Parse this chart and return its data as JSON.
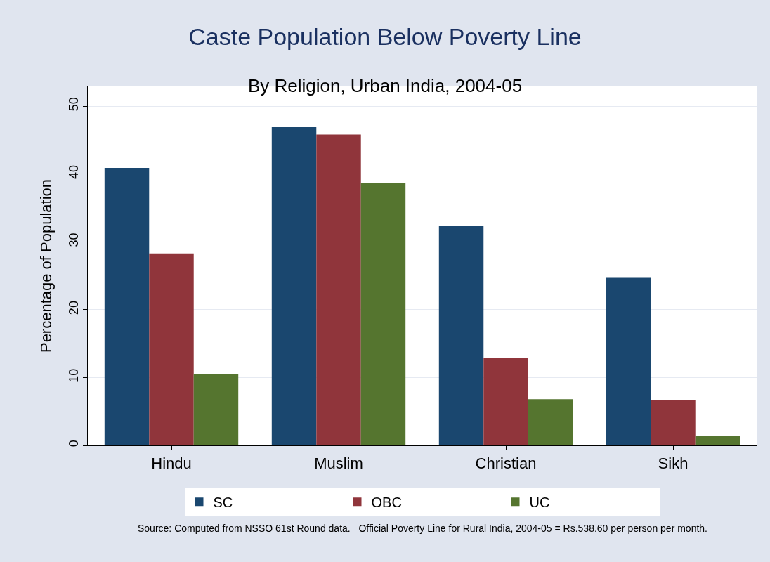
{
  "chart_data": {
    "type": "bar",
    "title": "Caste Population Below Poverty Line",
    "subtitle": "By Religion, Urban India, 2004-05",
    "ylabel": "Percentage of Population",
    "categories": [
      "Hindu",
      "Muslim",
      "Christian",
      "Sikh"
    ],
    "series": [
      {
        "name": "SC",
        "color": "#1a476f",
        "values": [
          40.9,
          46.9,
          32.3,
          24.7
        ]
      },
      {
        "name": "OBC",
        "color": "#90353b",
        "values": [
          28.3,
          45.8,
          12.9,
          6.7
        ]
      },
      {
        "name": "UC",
        "color": "#55752f",
        "values": [
          10.5,
          38.7,
          6.8,
          1.4
        ]
      }
    ],
    "ylim": [
      0,
      52.9
    ],
    "yticks": [
      0,
      10,
      20,
      30,
      40,
      50
    ],
    "grid": "y",
    "legend": "bottom",
    "annotations": [
      "Source: Computed from NSSO 61st Round data.   Official Poverty Line for Rural India, 2004-05 = Rs.538.60 per person per month."
    ]
  }
}
